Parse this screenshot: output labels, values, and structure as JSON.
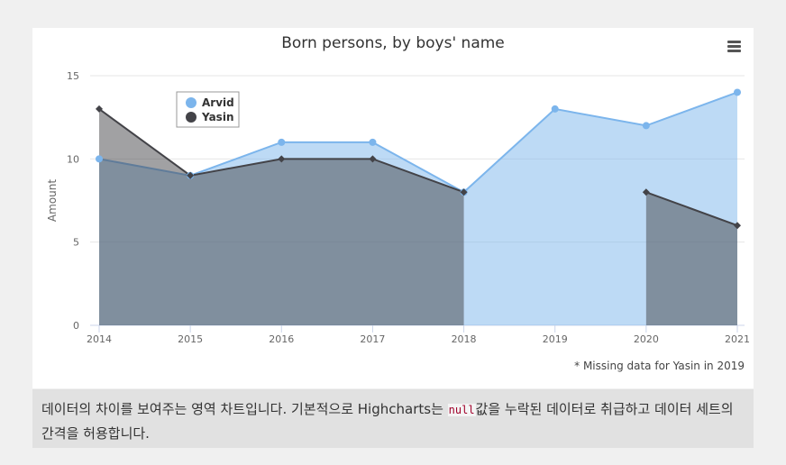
{
  "chart_data": {
    "type": "area",
    "title": "Born persons, by boys' name",
    "ylabel": "Amount",
    "ylim": [
      0,
      15
    ],
    "yticks": [
      0,
      5,
      10,
      15
    ],
    "x": [
      2014,
      2015,
      2016,
      2017,
      2018,
      2019,
      2020,
      2021
    ],
    "series": [
      {
        "name": "Arvid",
        "values": [
          10,
          9,
          11,
          11,
          8,
          13,
          12,
          14
        ],
        "color": "#7cb5ec",
        "marker": "circle"
      },
      {
        "name": "Yasin",
        "values": [
          13,
          9,
          10,
          10,
          8,
          null,
          8,
          6
        ],
        "color": "#434348",
        "marker": "diamond"
      }
    ],
    "legend_position": "top-left",
    "grid": true
  },
  "credits": "* Missing data for Yasin in 2019",
  "caption": {
    "before": "데이터의 차이를 보여주는 영역 차트입니다. 기본적으로 Highcharts는 ",
    "code": "null",
    "after": "값을 누락된 데이터로 취급하고 데이터 세트의 간격을 허용합니다."
  },
  "menu_icon": "hamburger-menu-icon"
}
